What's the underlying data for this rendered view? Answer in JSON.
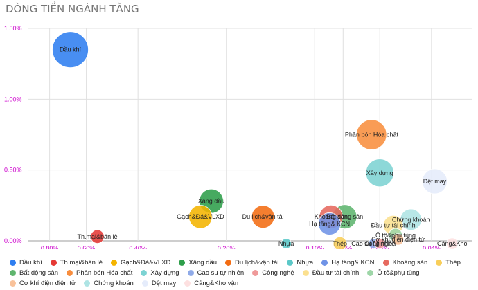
{
  "chart_data": {
    "type": "bubble",
    "title": "DÒNG TIỀN NGÀNH TĂNG",
    "xlabel": "",
    "ylabel": "",
    "x_direction": "reversed",
    "x_scale": "log",
    "x_ticks": [
      "0.80%",
      "0.60%",
      "0.40%",
      "0.20%",
      "0.10%",
      "0.08%",
      "0.06%",
      "0.04%"
    ],
    "x_tick_values": [
      0.8,
      0.6,
      0.4,
      0.2,
      0.1,
      0.08,
      0.06,
      0.04
    ],
    "y_ticks": [
      "1.50%",
      "1.00%",
      "0.50%",
      "0.00%"
    ],
    "y_tick_values": [
      1.5,
      1.0,
      0.5,
      0.0
    ],
    "ylim": [
      0,
      1.5
    ],
    "grid": true,
    "legend_position": "bottom",
    "series": [
      {
        "name": "Dầu khí",
        "label": "Dầu khí",
        "x": 0.68,
        "y": 1.35,
        "size": 1.0,
        "color": "#2f7ef0"
      },
      {
        "name": "Th.mại&bán lẻ",
        "label": "Th.mại&bán lẻ",
        "x": 0.55,
        "y": 0.03,
        "size": 0.14,
        "color": "#e53935"
      },
      {
        "name": "Gạch&Đá&VLXD",
        "label": "Gạch&Đá&VLXD",
        "x": 0.245,
        "y": 0.17,
        "size": 0.42,
        "color": "#f4b400"
      },
      {
        "name": "Xăng dầu",
        "label": "Xăng dầu",
        "x": 0.225,
        "y": 0.28,
        "size": 0.45,
        "color": "#2e9e4a"
      },
      {
        "name": "Du lịch&vận tải",
        "label": "Du lịch&vận tải",
        "x": 0.15,
        "y": 0.17,
        "size": 0.4,
        "color": "#f36c12"
      },
      {
        "name": "Nhựa",
        "label": "Nhựa",
        "x": 0.125,
        "y": -0.02,
        "size": 0.08,
        "color": "#5cc8c8"
      },
      {
        "name": "Hạ tầng& KCN",
        "label": "Hạ tầng& KCN",
        "x": 0.089,
        "y": 0.12,
        "size": 0.38,
        "color": "#6f93e6"
      },
      {
        "name": "Khoáng sản",
        "label": "Khoáng sản",
        "x": 0.088,
        "y": 0.17,
        "size": 0.42,
        "color": "#e6695f"
      },
      {
        "name": "Thép",
        "label": "Thép",
        "x": 0.082,
        "y": -0.02,
        "size": 0.14,
        "color": "#f8ce5a"
      },
      {
        "name": "Bất động sản",
        "label": "Bất động sản",
        "x": 0.079,
        "y": 0.17,
        "size": 0.45,
        "color": "#5fb56e"
      },
      {
        "name": "Phân bón Hóa chất",
        "label": "Phân bón Hóa chất",
        "x": 0.064,
        "y": 0.75,
        "size": 0.7,
        "color": "#f88e3e"
      },
      {
        "name": "Xây dựng",
        "label": "Xây dựng",
        "x": 0.06,
        "y": 0.48,
        "size": 0.6,
        "color": "#7dd3d3"
      },
      {
        "name": "Cao su tự nhiên",
        "label": "Cao su tự nhiên",
        "x": 0.063,
        "y": -0.02,
        "size": 0.08,
        "color": "#8faae8"
      },
      {
        "name": "Công nghệ",
        "label": "Công nghệ",
        "x": 0.06,
        "y": -0.02,
        "size": 0.08,
        "color": "#ef9a9a"
      },
      {
        "name": "Đầu tư tài chính",
        "label": "Đầu tư tài chính",
        "x": 0.054,
        "y": 0.11,
        "size": 0.3,
        "color": "#fbe08f"
      },
      {
        "name": "Ô tô&phụ tùng",
        "label": "Ô tô&phụ tùng",
        "x": 0.053,
        "y": 0.04,
        "size": 0.14,
        "color": "#9ed6a8"
      },
      {
        "name": "Cơ khí điện điện tử",
        "label": "Cơ khí điện điện tử",
        "x": 0.052,
        "y": 0.01,
        "size": 0.1,
        "color": "#f9c29a"
      },
      {
        "name": "Chứng khoán",
        "label": "Chứng khoán",
        "x": 0.047,
        "y": 0.15,
        "size": 0.35,
        "color": "#aee4e4"
      },
      {
        "name": "Dệt may",
        "label": "Dệt may",
        "x": 0.039,
        "y": 0.42,
        "size": 0.48,
        "color": "#e5ecfb"
      },
      {
        "name": "Cảng&Kho vận",
        "label": "Cảng&Kho",
        "x": 0.034,
        "y": -0.02,
        "size": 0.1,
        "color": "#fde0e0"
      }
    ]
  }
}
